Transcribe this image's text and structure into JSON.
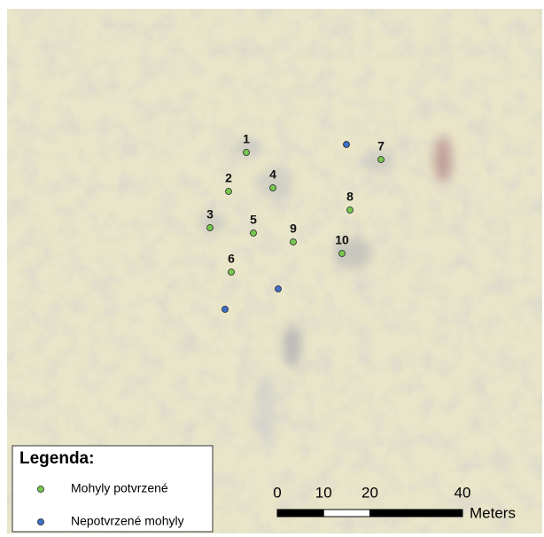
{
  "legend": {
    "title": "Legenda:",
    "items": [
      {
        "label": "Mohyly potvrzené",
        "color": "#77c74f"
      },
      {
        "label": "Nepotvrzené mohyly",
        "color": "#3d6fc6"
      }
    ]
  },
  "mounds": [
    {
      "label": "1"
    },
    {
      "label": "2"
    },
    {
      "label": "3"
    },
    {
      "label": "4"
    },
    {
      "label": "5"
    },
    {
      "label": "6"
    },
    {
      "label": "7"
    },
    {
      "label": "8"
    },
    {
      "label": "9"
    },
    {
      "label": "10"
    }
  ],
  "scale_bar": {
    "ticks": [
      0,
      10,
      20,
      40
    ],
    "unit": "Meters"
  }
}
